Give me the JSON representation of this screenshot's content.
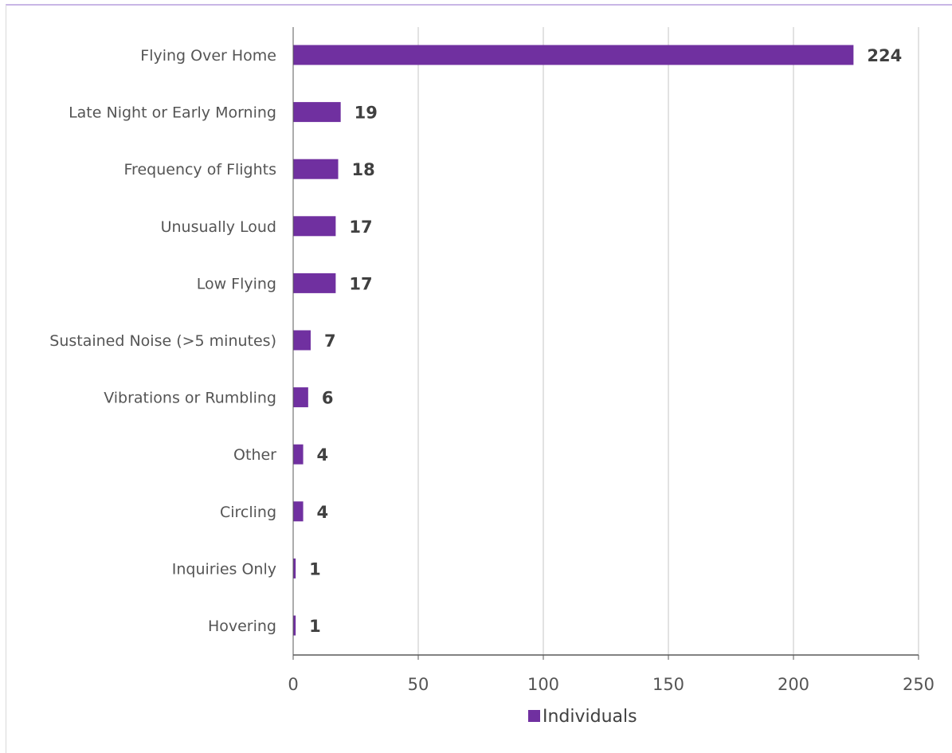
{
  "chart_data": {
    "type": "bar",
    "orientation": "horizontal",
    "categories": [
      "Flying Over Home",
      "Late Night or Early Morning",
      "Frequency of Flights",
      "Unusually Loud",
      "Low Flying",
      "Sustained Noise (>5 minutes)",
      "Vibrations or Rumbling",
      "Other",
      "Circling",
      "Inquiries Only",
      "Hovering"
    ],
    "series": [
      {
        "name": "Individuals",
        "values": [
          224,
          19,
          18,
          17,
          17,
          7,
          6,
          4,
          4,
          1,
          1
        ]
      }
    ],
    "xlim": [
      0,
      250
    ],
    "xticks": [
      0,
      50,
      100,
      150,
      200,
      250
    ],
    "grid": true,
    "legend": "bottom",
    "bar_color": "#7030a0"
  }
}
